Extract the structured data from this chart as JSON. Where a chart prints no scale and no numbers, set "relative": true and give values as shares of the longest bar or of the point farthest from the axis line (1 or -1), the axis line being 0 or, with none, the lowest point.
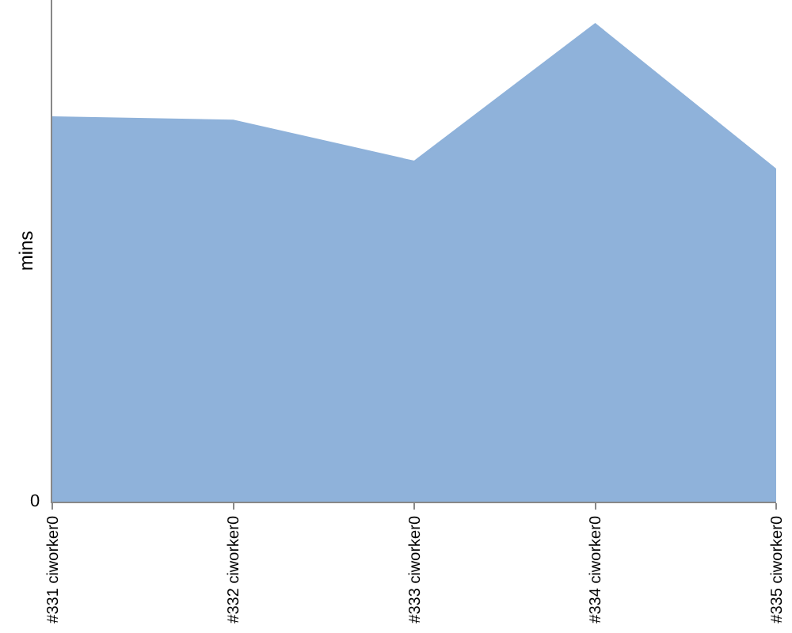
{
  "chart_data": {
    "type": "area",
    "ylabel": "mins",
    "relative": true,
    "categories": [
      "#331 ciworker0",
      "#332 ciworker0",
      "#333 ciworker0",
      "#334 ciworker0",
      "#335 ciworker0"
    ],
    "series": [
      {
        "color": "#8fb2da",
        "values": [
          0.805,
          0.798,
          0.712,
          1,
          0.695
        ]
      }
    ],
    "annotations": [
      "0"
    ]
  }
}
